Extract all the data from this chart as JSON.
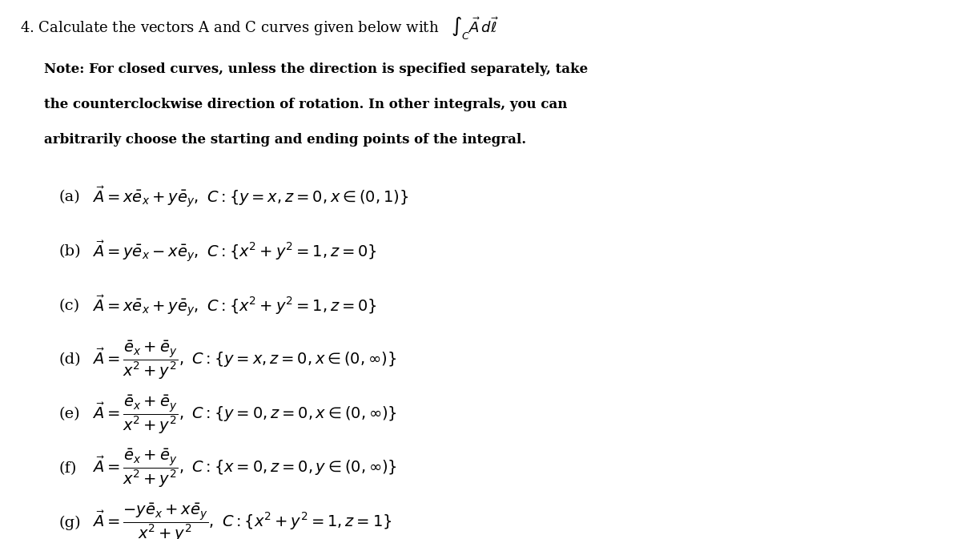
{
  "background_color": "#ffffff",
  "figsize": [
    12.0,
    6.73
  ],
  "dpi": 100,
  "title_number": "4.",
  "title_text": "Calculate the vectors A and C curves given below with",
  "title_math": "$\\int_C \\vec{A}\\, d\\vec{\\ell}$",
  "note_lines": [
    "Note: For closed curves, unless the direction is specified separately, take",
    "the counterclockwise direction of rotation. In other integrals, you can",
    "arbitrarily choose the starting and ending points of the integral."
  ],
  "items": [
    {
      "label": "(a)",
      "math": "$\\vec{A} = x\\bar{e}_x + y\\bar{e}_y,\\ C : \\{y = x, z = 0, x \\in (0,1)\\}$"
    },
    {
      "label": "(b)",
      "math": "$\\vec{A} = y\\bar{e}_x - x\\bar{e}_y,\\ C : \\{x^2 + y^2 = 1, z = 0\\}$"
    },
    {
      "label": "(c)",
      "math": "$\\vec{A} = x\\bar{e}_x + y\\bar{e}_y,\\ C : \\{x^2 + y^2 = 1, z = 0\\}$"
    },
    {
      "label": "(d)",
      "math": "$\\vec{A} = \\dfrac{\\bar{e}_x + \\bar{e}_y}{x^2 + y^2},\\ C : \\{y = x, z = 0, x \\in (0,\\infty)\\}$"
    },
    {
      "label": "(e)",
      "math": "$\\vec{A} = \\dfrac{\\bar{e}_x + \\bar{e}_y}{x^2 + y^2},\\ C : \\{y = 0, z = 0, x \\in (0,\\infty)\\}$"
    },
    {
      "label": "(f)",
      "math": "$\\vec{A} = \\dfrac{\\bar{e}_x + \\bar{e}_y}{x^2 + y^2},\\ C : \\{x = 0, z = 0, y \\in (0,\\infty)\\}$"
    },
    {
      "label": "(g)",
      "math": "$\\vec{A} = \\dfrac{-y\\bar{e}_x + x\\bar{e}_y}{x^2 + y^2},\\ C : \\{x^2 + y^2 = 1, z = 1\\}$"
    }
  ],
  "font_size_title": 13,
  "font_size_note": 12,
  "font_size_items": 14,
  "text_color": "#000000",
  "indent_note": 0.045,
  "indent_items": 0.07
}
